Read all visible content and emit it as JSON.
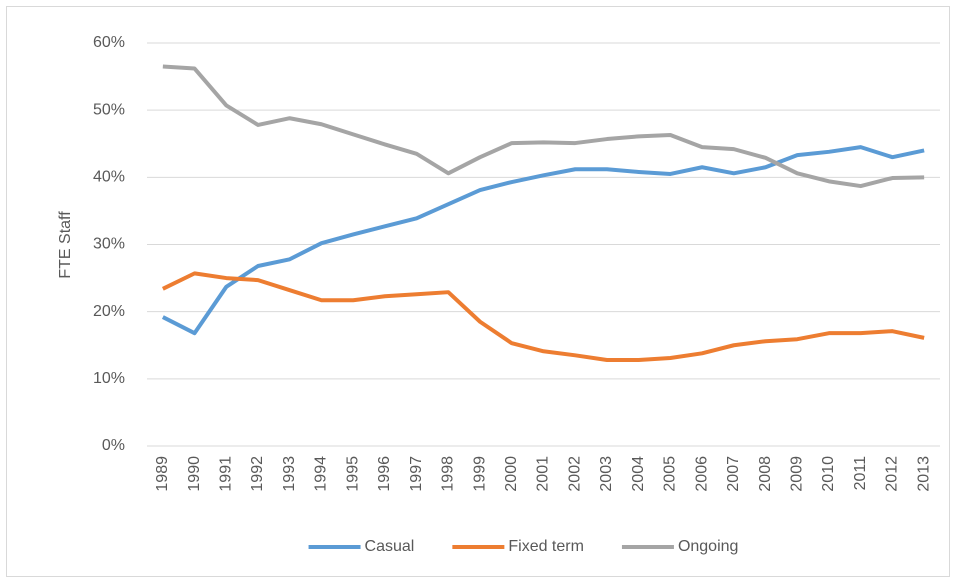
{
  "chart_data": {
    "type": "line",
    "y_label": "FTE Staff",
    "categories": [
      "1989",
      "1990",
      "1991",
      "1992",
      "1993",
      "1994",
      "1995",
      "1996",
      "1997",
      "1998",
      "1999",
      "2000",
      "2001",
      "2002",
      "2003",
      "2004",
      "2005",
      "2006",
      "2007",
      "2008",
      "2009",
      "2010",
      "2011",
      "2012",
      "2013"
    ],
    "series": [
      {
        "name": "Casual",
        "color": "#5b9bd5",
        "values": [
          19.2,
          16.8,
          23.7,
          26.8,
          27.8,
          30.2,
          31.5,
          32.7,
          33.9,
          36.0,
          38.1,
          39.3,
          40.3,
          41.2,
          41.2,
          40.8,
          40.5,
          41.5,
          40.6,
          41.5,
          43.3,
          43.8,
          44.5,
          43.0,
          44.0
        ]
      },
      {
        "name": "Fixed term",
        "color": "#ed7d31",
        "values": [
          23.4,
          25.7,
          25.0,
          24.7,
          23.2,
          21.7,
          21.7,
          22.3,
          22.6,
          22.9,
          18.5,
          15.3,
          14.1,
          13.5,
          12.8,
          12.8,
          13.1,
          13.8,
          15.0,
          15.6,
          15.9,
          16.8,
          16.8,
          17.1,
          16.1
        ]
      },
      {
        "name": "Ongoing",
        "color": "#a5a5a5",
        "values": [
          56.5,
          56.2,
          50.7,
          47.8,
          48.8,
          47.9,
          46.4,
          44.9,
          43.5,
          40.6,
          43.0,
          45.1,
          45.2,
          45.1,
          45.7,
          46.1,
          46.3,
          44.5,
          44.2,
          42.9,
          40.6,
          39.4,
          38.7,
          39.9,
          40.0
        ]
      }
    ],
    "ylim": [
      0,
      60
    ],
    "yticks": [
      {
        "value": 0,
        "label": "0%"
      },
      {
        "value": 10,
        "label": "10%"
      },
      {
        "value": 20,
        "label": "20%"
      },
      {
        "value": 30,
        "label": "30%"
      },
      {
        "value": 40,
        "label": "40%"
      },
      {
        "value": 50,
        "label": "50%"
      },
      {
        "value": 60,
        "label": "60%"
      }
    ],
    "grid": true,
    "legend": "bottom"
  }
}
